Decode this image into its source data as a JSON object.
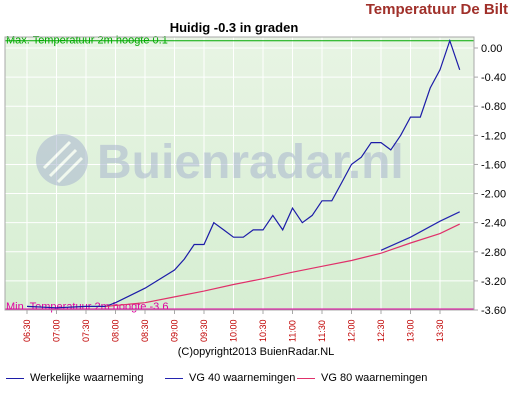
{
  "header": {
    "title": "Temperatuur De Bilt"
  },
  "footer": {
    "copyright": "(C)opyright2013 BuienRadar.NL"
  },
  "watermark": {
    "text": "Buienradar.nl"
  },
  "colors": {
    "actual": "#1c1ca8",
    "vg40": "#2424b0",
    "vg80": "#e0306a",
    "max_line": "#00aa00",
    "min_line": "#e000a0",
    "header": "#a0302a",
    "grid": "#ffffff",
    "axis_border": "#a8a8a8"
  },
  "chart_data": {
    "type": "line",
    "title": "Huidig -0.3 in graden",
    "ylim": [
      -3.6,
      0.1
    ],
    "yticks": [
      "0.00",
      "-0.40",
      "-0.80",
      "-1.20",
      "-1.60",
      "-2.00",
      "-2.40",
      "-2.80",
      "-3.20",
      "-3.60"
    ],
    "xticks": [
      "06:30",
      "07:00",
      "07:30",
      "08:00",
      "08:30",
      "09:00",
      "09:30",
      "10:00",
      "10:30",
      "11:00",
      "11:30",
      "12:00",
      "12:30",
      "13:00",
      "13:30"
    ],
    "x_start": "06:30",
    "x_end": "13:50",
    "max_label": "Max. Temperatuur 2m hoogte 0.1",
    "max_value": 0.1,
    "min_label": "Min. Temperatuur 2m hoogte -3.6",
    "min_value": -3.6,
    "series": [
      {
        "name": "Werkelijke waarneming",
        "points": [
          [
            "06:30",
            -3.55
          ],
          [
            "07:00",
            -3.57
          ],
          [
            "07:30",
            -3.55
          ],
          [
            "07:50",
            -3.55
          ],
          [
            "08:00",
            -3.5
          ],
          [
            "08:30",
            -3.3
          ],
          [
            "09:00",
            -3.05
          ],
          [
            "09:10",
            -2.9
          ],
          [
            "09:20",
            -2.7
          ],
          [
            "09:30",
            -2.7
          ],
          [
            "09:40",
            -2.4
          ],
          [
            "09:50",
            -2.5
          ],
          [
            "10:00",
            -2.6
          ],
          [
            "10:10",
            -2.6
          ],
          [
            "10:20",
            -2.5
          ],
          [
            "10:30",
            -2.5
          ],
          [
            "10:40",
            -2.3
          ],
          [
            "10:50",
            -2.5
          ],
          [
            "11:00",
            -2.2
          ],
          [
            "11:10",
            -2.4
          ],
          [
            "11:20",
            -2.3
          ],
          [
            "11:30",
            -2.1
          ],
          [
            "11:40",
            -2.1
          ],
          [
            "11:50",
            -1.85
          ],
          [
            "12:00",
            -1.6
          ],
          [
            "12:10",
            -1.5
          ],
          [
            "12:20",
            -1.3
          ],
          [
            "12:30",
            -1.3
          ],
          [
            "12:40",
            -1.4
          ],
          [
            "12:50",
            -1.2
          ],
          [
            "13:00",
            -0.95
          ],
          [
            "13:10",
            -0.95
          ],
          [
            "13:20",
            -0.55
          ],
          [
            "13:30",
            -0.3
          ],
          [
            "13:40",
            0.1
          ],
          [
            "13:50",
            -0.3
          ]
        ]
      },
      {
        "name": "VG 40 waarnemingen",
        "points": [
          [
            "12:30",
            -2.78
          ],
          [
            "13:00",
            -2.6
          ],
          [
            "13:30",
            -2.38
          ],
          [
            "13:50",
            -2.25
          ]
        ]
      },
      {
        "name": "VG 80 waarnemingen",
        "points": [
          [
            "07:50",
            -3.55
          ],
          [
            "08:30",
            -3.5
          ],
          [
            "09:00",
            -3.42
          ],
          [
            "09:30",
            -3.34
          ],
          [
            "10:00",
            -3.25
          ],
          [
            "10:30",
            -3.17
          ],
          [
            "11:00",
            -3.08
          ],
          [
            "11:30",
            -3.0
          ],
          [
            "12:00",
            -2.92
          ],
          [
            "12:30",
            -2.82
          ],
          [
            "13:00",
            -2.68
          ],
          [
            "13:30",
            -2.55
          ],
          [
            "13:50",
            -2.42
          ]
        ]
      }
    ]
  }
}
